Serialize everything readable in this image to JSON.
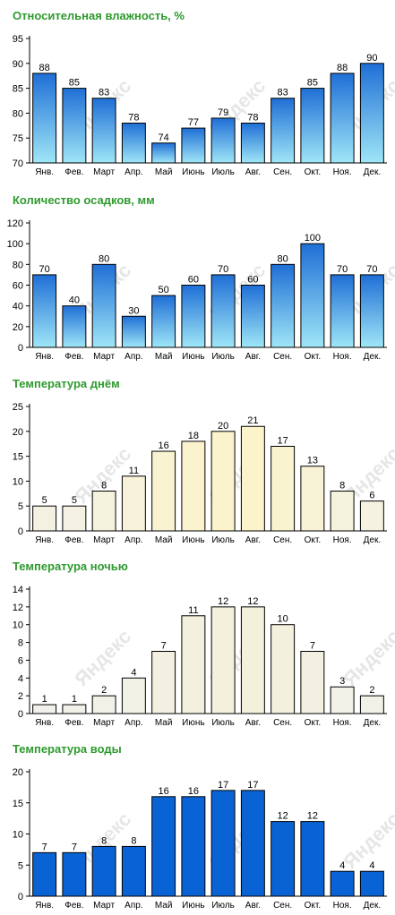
{
  "charts": [
    {
      "title": "Относительная влажность, %",
      "chart_data": {
        "type": "bar",
        "title": "Относительная влажность, %",
        "categories": [
          "Янв.",
          "Фев.",
          "Март",
          "Апр.",
          "Май",
          "Июнь",
          "Июль",
          "Авг.",
          "Сен.",
          "Окт.",
          "Ноя.",
          "Дек."
        ],
        "values": [
          88,
          85,
          83,
          78,
          74,
          77,
          79,
          78,
          83,
          85,
          88,
          90
        ],
        "ylim": [
          70,
          95
        ],
        "yticks": [
          70,
          75,
          80,
          85,
          90,
          95
        ],
        "xlabel": "",
        "ylabel": "",
        "grid": false,
        "style": "blue-gradient",
        "colors": {
          "top": "#1f6fd6",
          "bottom": "#9fe6f7",
          "stroke": "#000000"
        }
      }
    },
    {
      "title": "Количество осадков, мм",
      "chart_data": {
        "type": "bar",
        "title": "Количество осадков, мм",
        "categories": [
          "Янв.",
          "Фев.",
          "Март",
          "Апр.",
          "Май",
          "Июнь",
          "Июль",
          "Авг.",
          "Сен.",
          "Окт.",
          "Ноя.",
          "Дек."
        ],
        "values": [
          70,
          40,
          80,
          30,
          50,
          60,
          70,
          60,
          80,
          100,
          70,
          70
        ],
        "ylim": [
          0,
          120
        ],
        "yticks": [
          0,
          20,
          40,
          60,
          80,
          100,
          120
        ],
        "xlabel": "",
        "ylabel": "",
        "grid": false,
        "style": "blue-gradient",
        "colors": {
          "top": "#1f6fd6",
          "bottom": "#9fe6f7",
          "stroke": "#000000"
        }
      }
    },
    {
      "title": "Температура днём",
      "chart_data": {
        "type": "bar",
        "title": "Температура днём",
        "categories": [
          "Янв.",
          "Фев.",
          "Март",
          "Апр.",
          "Май",
          "Июнь",
          "Июль",
          "Авг.",
          "Сен.",
          "Окт.",
          "Ноя.",
          "Дек."
        ],
        "values": [
          5,
          5,
          8,
          11,
          16,
          18,
          20,
          21,
          17,
          13,
          8,
          6
        ],
        "ylim": [
          0,
          25
        ],
        "yticks": [
          0,
          5,
          10,
          15,
          20,
          25
        ],
        "xlabel": "",
        "ylabel": "",
        "grid": false,
        "style": "warm-fill",
        "colors": {
          "low": "#f2f1ea",
          "high": "#fbf3c9",
          "stroke": "#000000"
        }
      }
    },
    {
      "title": "Температура ночью",
      "chart_data": {
        "type": "bar",
        "title": "Температура ночью",
        "categories": [
          "Янв.",
          "Фев.",
          "Март",
          "Апр.",
          "Май",
          "Июнь",
          "Июль",
          "Авг.",
          "Сен.",
          "Окт.",
          "Ноя.",
          "Дек."
        ],
        "values": [
          1,
          1,
          2,
          4,
          7,
          11,
          12,
          12,
          10,
          7,
          3,
          2
        ],
        "ylim": [
          0,
          14
        ],
        "yticks": [
          0,
          2,
          4,
          6,
          8,
          10,
          12,
          14
        ],
        "xlabel": "",
        "ylabel": "",
        "grid": false,
        "style": "warm-fill",
        "colors": {
          "low": "#f2f1ea",
          "high": "#f3f0dc",
          "stroke": "#000000"
        }
      }
    },
    {
      "title": "Температура воды",
      "chart_data": {
        "type": "bar",
        "title": "Температура воды",
        "categories": [
          "Янв.",
          "Фев.",
          "Март",
          "Апр.",
          "Май",
          "Июнь",
          "Июль",
          "Авг.",
          "Сен.",
          "Окт.",
          "Ноя.",
          "Дек."
        ],
        "values": [
          7,
          7,
          8,
          8,
          16,
          16,
          17,
          17,
          12,
          12,
          4,
          4
        ],
        "ylim": [
          0,
          20
        ],
        "yticks": [
          0,
          5,
          10,
          15,
          20
        ],
        "xlabel": "",
        "ylabel": "",
        "grid": false,
        "style": "solid-blue",
        "colors": {
          "fill": "#0a63d4",
          "stroke": "#000000"
        }
      }
    }
  ],
  "watermark": "Яндекс"
}
